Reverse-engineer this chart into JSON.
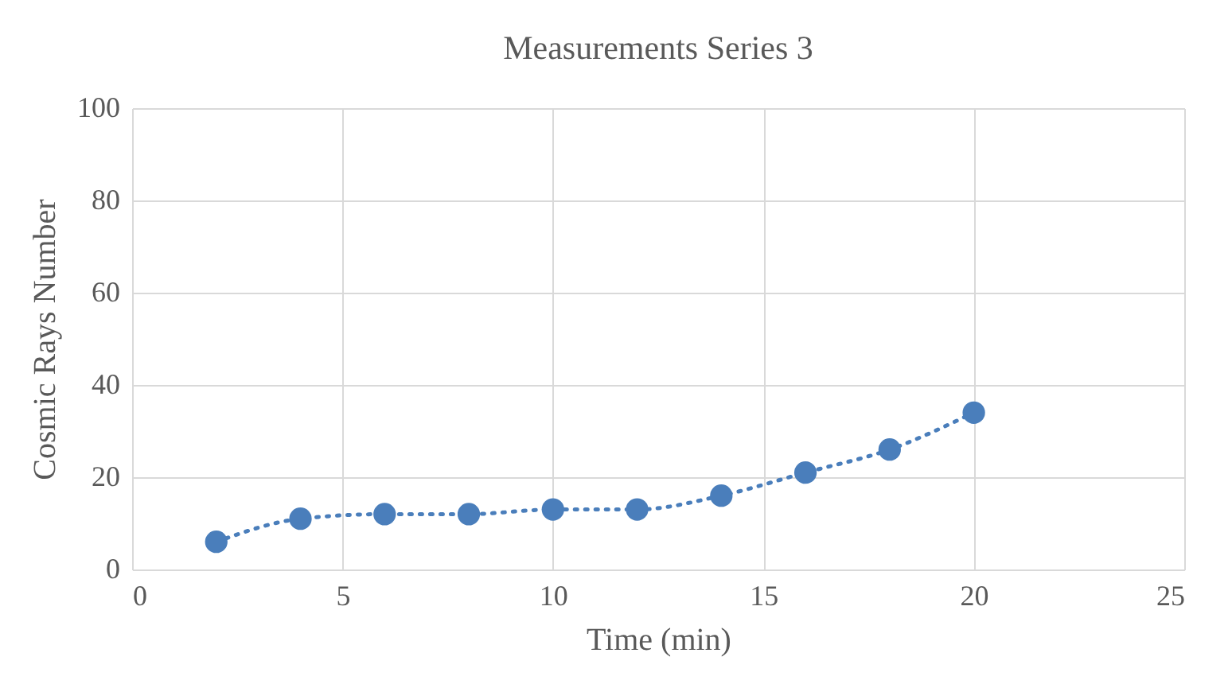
{
  "chart_data": {
    "type": "line",
    "title": "Measurements Series 3",
    "xlabel": "Time (min)",
    "ylabel": "Cosmic Rays Number",
    "x": [
      2,
      4,
      6,
      8,
      10,
      12,
      14,
      16,
      18,
      20
    ],
    "series": [
      {
        "color": "#4a7ebb",
        "values": [
          6,
          11,
          12,
          12,
          13,
          13,
          16,
          21,
          26,
          34
        ]
      }
    ],
    "xlim": [
      0,
      25
    ],
    "xticks": [
      0,
      5,
      10,
      15,
      20,
      25
    ],
    "ylim": [
      0,
      100
    ],
    "yticks": [
      0,
      20,
      40,
      60,
      80,
      100
    ],
    "grid": true,
    "marker": "circle",
    "line_style": "dotted"
  }
}
